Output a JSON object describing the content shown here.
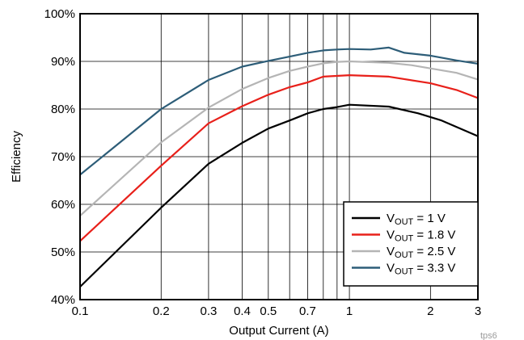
{
  "chart_data": {
    "type": "line",
    "xlabel": "Output Current (A)",
    "ylabel": "Efficiency",
    "x_scale": "log",
    "xlim": [
      0.1,
      3
    ],
    "ylim": [
      40,
      100
    ],
    "x_ticks": [
      0.1,
      0.2,
      0.3,
      0.4,
      0.5,
      0.7,
      1,
      2,
      3
    ],
    "x_tick_labels": [
      "0.1",
      "0.2",
      "0.3",
      "0.4",
      "0.5",
      "0.7",
      "1",
      "2",
      "3"
    ],
    "x_minor_gridlines": [
      0.6,
      0.8,
      0.9
    ],
    "y_ticks": [
      40,
      50,
      60,
      70,
      80,
      90,
      100
    ],
    "y_tick_labels": [
      "40%",
      "50%",
      "60%",
      "70%",
      "80%",
      "90%",
      "100%"
    ],
    "grid": true,
    "legend_position": "bottom-right",
    "watermark": "tps6",
    "series": [
      {
        "name": "VOUT = 1 V",
        "label_main": "V",
        "label_sub": "OUT",
        "label_rest": " = 1 V",
        "color": "#000000",
        "x": [
          0.1,
          0.2,
          0.3,
          0.4,
          0.5,
          0.6,
          0.7,
          0.8,
          0.9,
          1,
          1.4,
          1.8,
          2.2,
          3
        ],
        "y": [
          42.7,
          59.3,
          68.5,
          72.9,
          75.9,
          77.6,
          79.1,
          80.0,
          80.4,
          80.9,
          80.5,
          79.1,
          77.6,
          74.3
        ]
      },
      {
        "name": "VOUT = 1.8 V",
        "label_main": "V",
        "label_sub": "OUT",
        "label_rest": " = 1.8 V",
        "color": "#e8201a",
        "x": [
          0.1,
          0.2,
          0.3,
          0.4,
          0.5,
          0.6,
          0.7,
          0.8,
          1,
          1.4,
          2,
          2.5,
          3
        ],
        "y": [
          52.3,
          68.1,
          77.0,
          80.6,
          83.0,
          84.6,
          85.6,
          86.8,
          87.1,
          86.8,
          85.4,
          84.0,
          82.3
        ]
      },
      {
        "name": "VOUT = 2.5 V",
        "label_main": "V",
        "label_sub": "OUT",
        "label_rest": " = 2.5 V",
        "color": "#b5b5b5",
        "x": [
          0.1,
          0.2,
          0.3,
          0.4,
          0.5,
          0.6,
          0.7,
          0.8,
          0.9,
          1,
          1.4,
          1.7,
          2.5,
          3
        ],
        "y": [
          57.6,
          73.0,
          80.3,
          84.2,
          86.5,
          88.0,
          88.9,
          89.6,
          89.9,
          90.0,
          89.7,
          89.2,
          87.6,
          86.2
        ]
      },
      {
        "name": "VOUT = 3.3 V",
        "label_main": "V",
        "label_sub": "OUT",
        "label_rest": " = 3.3 V",
        "color": "#2d5d78",
        "x": [
          0.1,
          0.2,
          0.3,
          0.4,
          0.5,
          0.6,
          0.7,
          0.8,
          0.9,
          1,
          1.2,
          1.4,
          1.6,
          2,
          2.5,
          3
        ],
        "y": [
          66.2,
          80.0,
          86.1,
          88.9,
          90.1,
          91.0,
          91.8,
          92.3,
          92.5,
          92.6,
          92.5,
          92.9,
          91.8,
          91.2,
          90.2,
          89.5
        ]
      }
    ]
  }
}
